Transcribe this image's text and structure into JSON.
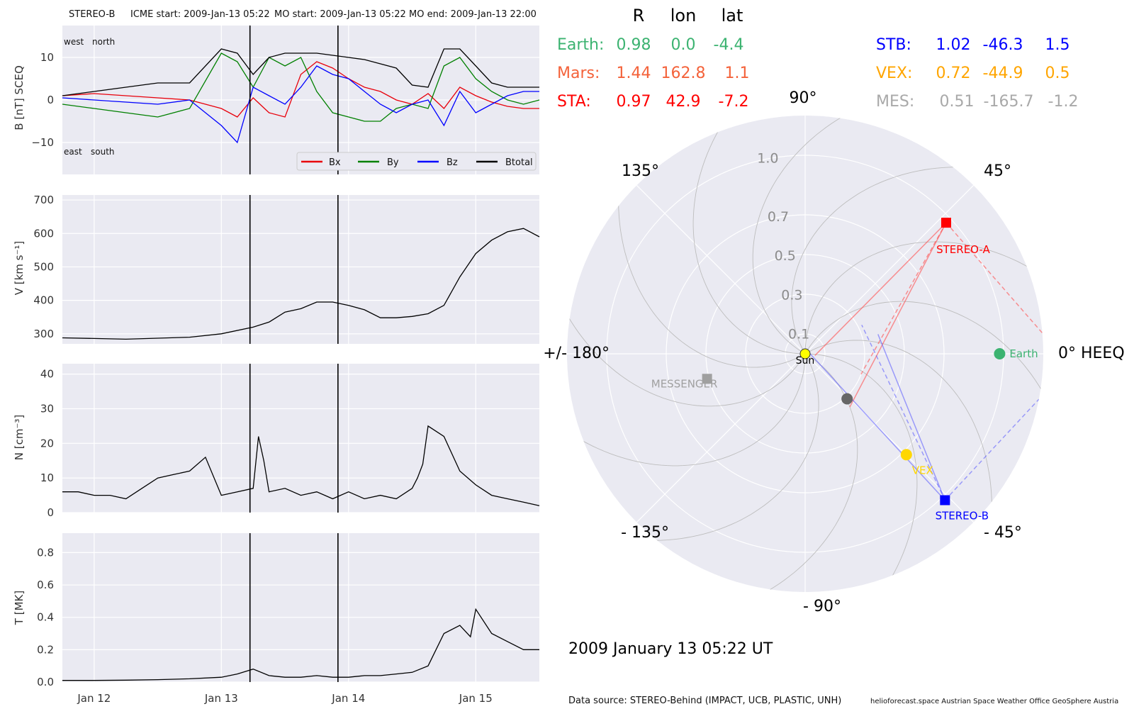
{
  "header": {
    "spacecraft": "STEREO-B",
    "icme_start": "ICME start: 2009-Jan-13 05:22",
    "mo_start": "MO start: 2009-Jan-13 05:22",
    "mo_end": "MO end: 2009-Jan-13 22:00"
  },
  "colors": {
    "bx": "#e8000b",
    "by": "#008000",
    "bz": "#0000ff",
    "btotal": "#000000",
    "panel_bg": "#eaeaf2"
  },
  "chart_data": [
    {
      "type": "line",
      "panel": "magnetic_field",
      "ylabel": "B [nT] SCEQ",
      "ylim": [
        -17.5,
        17.5
      ],
      "yticks": [
        "10",
        "0",
        "−10"
      ],
      "annotations": {
        "top_left": "west",
        "top_right": "north",
        "bottom_left": "east",
        "bottom_right": "south"
      },
      "legend": {
        "placement": "bottom-right",
        "entries": [
          "Bx",
          "By",
          "Bz",
          "Btotal"
        ]
      },
      "x": [
        0,
        6,
        12,
        18,
        24,
        30,
        33,
        36,
        39,
        42,
        45,
        48,
        51,
        54,
        57,
        60,
        63,
        66,
        69,
        72,
        75,
        78,
        81,
        84,
        87,
        90
      ],
      "series": [
        {
          "name": "Bx",
          "values": [
            1,
            1.5,
            1,
            0.5,
            0,
            -2,
            -4,
            0.5,
            -3,
            -4,
            6,
            9,
            7.5,
            5,
            3,
            2,
            0,
            -1,
            1.5,
            -2,
            3,
            1,
            -0.5,
            -1.5,
            -2,
            -2
          ]
        },
        {
          "name": "By",
          "values": [
            -1,
            -2,
            -3,
            -4,
            -2,
            11,
            9,
            3,
            10,
            8,
            10,
            2,
            -3,
            -4,
            -5,
            -5,
            -2,
            -1,
            -2,
            8,
            10,
            5,
            2,
            0,
            -1,
            0
          ]
        },
        {
          "name": "Bz",
          "values": [
            0.5,
            0,
            -0.5,
            -1,
            0,
            -6,
            -10,
            3,
            1,
            -1,
            3,
            8,
            6,
            5,
            2,
            -1,
            -3,
            -1,
            0,
            -6,
            2,
            -3,
            -1,
            1,
            2,
            2
          ]
        },
        {
          "name": "Btotal",
          "values": [
            1,
            2,
            3,
            4,
            4,
            12,
            11,
            6,
            10,
            11,
            11,
            11,
            10.5,
            10,
            9.5,
            8.5,
            7.5,
            3.5,
            3,
            12,
            12,
            8,
            4,
            3,
            3,
            3
          ]
        }
      ]
    },
    {
      "type": "line",
      "panel": "speed",
      "ylabel": "V [km s⁻¹]",
      "ylim": [
        270,
        715
      ],
      "yticks": [
        "700",
        "600",
        "500",
        "400",
        "300"
      ],
      "x": [
        0,
        6,
        12,
        18,
        24,
        30,
        36,
        39,
        42,
        45,
        48,
        51,
        54,
        57,
        60,
        63,
        66,
        69,
        72,
        75,
        78,
        81,
        84,
        87,
        90
      ],
      "series": [
        {
          "name": "V",
          "values": [
            288,
            286,
            284,
            287,
            290,
            300,
            320,
            335,
            365,
            375,
            395,
            395,
            385,
            372,
            348,
            348,
            352,
            360,
            385,
            470,
            540,
            580,
            605,
            615,
            590
          ]
        }
      ]
    },
    {
      "type": "line",
      "panel": "density",
      "ylabel": "N [cm⁻³]",
      "ylim": [
        0,
        43
      ],
      "yticks": [
        "40",
        "30",
        "20",
        "10",
        "0"
      ],
      "x": [
        0,
        3,
        6,
        9,
        12,
        15,
        18,
        21,
        24,
        27,
        30,
        33,
        36,
        37,
        38,
        39,
        42,
        45,
        48,
        51,
        54,
        57,
        60,
        63,
        66,
        67,
        68,
        69,
        72,
        75,
        78,
        81,
        84,
        87,
        90
      ],
      "series": [
        {
          "name": "N",
          "values": [
            6,
            6,
            5,
            5,
            4,
            7,
            10,
            11,
            12,
            16,
            5,
            6,
            7,
            22,
            15,
            6,
            7,
            5,
            6,
            4,
            6,
            4,
            5,
            4,
            7,
            10,
            14,
            25,
            22,
            12,
            8,
            5,
            4,
            3,
            2
          ]
        }
      ]
    },
    {
      "type": "line",
      "panel": "temperature",
      "ylabel": "T [MK]",
      "ylim": [
        0,
        0.92
      ],
      "yticks": [
        "0.8",
        "0.6",
        "0.4",
        "0.2",
        "0.0"
      ],
      "x": [
        0,
        6,
        12,
        18,
        24,
        30,
        33,
        36,
        39,
        42,
        45,
        48,
        51,
        54,
        57,
        60,
        63,
        66,
        69,
        72,
        75,
        77,
        78,
        81,
        84,
        87,
        90
      ],
      "series": [
        {
          "name": "T",
          "values": [
            0.01,
            0.01,
            0.012,
            0.015,
            0.02,
            0.03,
            0.05,
            0.08,
            0.04,
            0.03,
            0.03,
            0.04,
            0.03,
            0.03,
            0.04,
            0.04,
            0.05,
            0.06,
            0.1,
            0.3,
            0.35,
            0.28,
            0.45,
            0.3,
            0.25,
            0.2,
            0.2
          ]
        }
      ]
    }
  ],
  "time_axis": {
    "xlim": [
      0,
      90
    ],
    "ticks": [
      {
        "x": 6,
        "label": "Jan 12"
      },
      {
        "x": 30,
        "label": "Jan 13"
      },
      {
        "x": 54,
        "label": "Jan 14"
      },
      {
        "x": 78,
        "label": "Jan 15"
      }
    ],
    "event_lines": [
      35.4,
      52
    ]
  },
  "polar": {
    "type": "scatter",
    "rlim": [
      0,
      1.2
    ],
    "radial_ticks": [
      "0.1",
      "0.3",
      "0.5",
      "0.7",
      "1.0"
    ],
    "radial_tick_values": [
      0.1,
      0.3,
      0.5,
      0.7,
      1.0
    ],
    "angle_labels": {
      "a90": "90°",
      "a45": "45°",
      "a0": "0° HEEQ",
      "am45": "- 45°",
      "am90": "- 90°",
      "am135": "- 135°",
      "a180": "+/- 180°",
      "a135": "135°"
    },
    "bodies": [
      {
        "label": "Sun",
        "r": 0.0,
        "lon": 0.0,
        "color": "#ffff00",
        "marker": "circle"
      },
      {
        "label": "Earth",
        "r": 0.98,
        "lon": 0.0,
        "color": "#3cb371",
        "marker": "circle"
      },
      {
        "label": "STEREO-A",
        "r": 0.97,
        "lon": 42.9,
        "color": "#ff0000",
        "marker": "square"
      },
      {
        "label": "STEREO-B",
        "r": 1.02,
        "lon": -46.3,
        "color": "#0000ff",
        "marker": "square"
      },
      {
        "label": "VEX",
        "r": 0.72,
        "lon": -44.9,
        "color": "#ffd700",
        "marker": "circle"
      },
      {
        "label": "MESSENGER",
        "r": 0.51,
        "lon": -165.7,
        "color": "#a0a0a0",
        "marker": "square"
      },
      {
        "label": "",
        "r": 0.31,
        "lon": -47.0,
        "color": "#666666",
        "marker": "circle"
      }
    ]
  },
  "table": {
    "headers": [
      "R",
      "lon",
      "lat"
    ],
    "rows_left": [
      {
        "name": "Earth:",
        "r": "0.98",
        "lon": "0.0",
        "lat": "-4.4",
        "color": "#3cb371"
      },
      {
        "name": "Mars:",
        "r": "1.44",
        "lon": "162.8",
        "lat": "1.1",
        "color": "#f4623a"
      },
      {
        "name": "STA:",
        "r": "0.97",
        "lon": "42.9",
        "lat": "-7.2",
        "color": "#ff0000"
      }
    ],
    "rows_right": [
      {
        "name": "STB:",
        "r": "1.02",
        "lon": "-46.3",
        "lat": "1.5",
        "color": "#0000ff"
      },
      {
        "name": "VEX:",
        "r": "0.72",
        "lon": "-44.9",
        "lat": "0.5",
        "color": "#ffa500"
      },
      {
        "name": "MES:",
        "r": "0.51",
        "lon": "-165.7",
        "lat": "-1.2",
        "color": "#a9a9a9"
      }
    ]
  },
  "timestamp": "2009 January 13  05:22 UT",
  "footer": {
    "source": "Data source: STEREO-Behind (IMPACT, UCB, PLASTIC, UNH)",
    "credit": "helioforecast.space   Austrian Space Weather Office   GeoSphere Austria"
  }
}
